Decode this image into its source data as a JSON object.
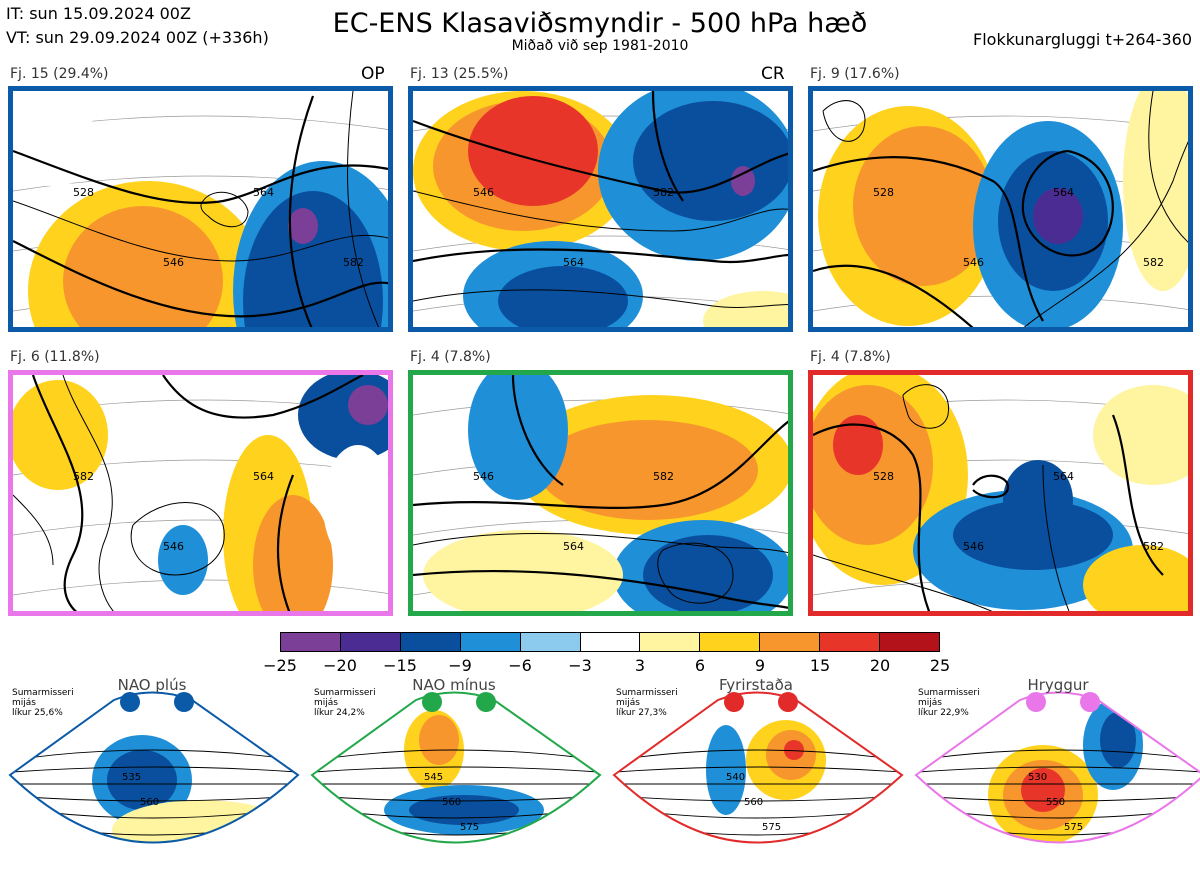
{
  "header": {
    "it_line": "IT: sun 15.09.2024 00Z",
    "vt_line": "VT: sun 29.09.2024 00Z  (+336h)",
    "title": "EC-ENS Klasaviðsmyndir - 500 hPa hæð",
    "subtitle": "Miðað við sep 1981-2010",
    "window": "Flokkunargluggi t+264-360"
  },
  "colors": {
    "nao_plus": "#0a5aa8",
    "nao_minus": "#22a84a",
    "blocking": "#e22a2a",
    "ridge": "#ea77ea"
  },
  "panels": [
    {
      "label": "Fj. 15 (29.4%)",
      "tag": "OP",
      "regime": "nao_plus",
      "contours": [
        "528",
        "546",
        "564",
        "582"
      ]
    },
    {
      "label": "Fj. 13 (25.5%)",
      "tag": "CR",
      "regime": "nao_plus",
      "contours": [
        "546",
        "564",
        "582"
      ]
    },
    {
      "label": "Fj. 9 (17.6%)",
      "tag": "",
      "regime": "nao_plus",
      "contours": [
        "528",
        "546",
        "564",
        "582"
      ]
    },
    {
      "label": "Fj. 6 (11.8%)",
      "tag": "",
      "regime": "ridge",
      "contours": [
        "582",
        "546",
        "564"
      ]
    },
    {
      "label": "Fj. 4 (7.8%)",
      "tag": "",
      "regime": "nao_minus",
      "contours": [
        "546",
        "564",
        "582"
      ]
    },
    {
      "label": "Fj. 4 (7.8%)",
      "tag": "",
      "regime": "blocking",
      "contours": [
        "528",
        "546",
        "564",
        "582"
      ]
    }
  ],
  "chart_data": {
    "type": "heatmap",
    "colorbar": {
      "ticks": [
        "−25",
        "−20",
        "−15",
        "−9",
        "−6",
        "−3",
        "3",
        "6",
        "9",
        "15",
        "20",
        "25"
      ],
      "colors": [
        "#7b3f98",
        "#4b2c93",
        "#0a4f9e",
        "#1f8fd8",
        "#8ccaee",
        "#ffffff",
        "#fff4a0",
        "#ffd21e",
        "#f7962c",
        "#e8352a",
        "#b3121a"
      ]
    }
  },
  "regimes": [
    {
      "name": "NAO plús",
      "note": [
        "Sumarmisseri",
        "mijás",
        "líkur 25,6%"
      ],
      "contours": [
        "535",
        "560"
      ],
      "color_key": "nao_plus"
    },
    {
      "name": "NAO mínus",
      "note": [
        "Sumarmisseri",
        "mijás",
        "líkur 24,2%"
      ],
      "contours": [
        "545",
        "560",
        "575"
      ],
      "color_key": "nao_minus"
    },
    {
      "name": "Fyrirstaða",
      "note": [
        "Sumarmisseri",
        "mijás",
        "líkur 27,3%"
      ],
      "contours": [
        "540",
        "560",
        "575"
      ],
      "color_key": "blocking"
    },
    {
      "name": "Hryggur",
      "note": [
        "Sumarmisseri",
        "mijás",
        "líkur 22,9%"
      ],
      "contours": [
        "530",
        "550",
        "575"
      ],
      "color_key": "ridge"
    }
  ]
}
